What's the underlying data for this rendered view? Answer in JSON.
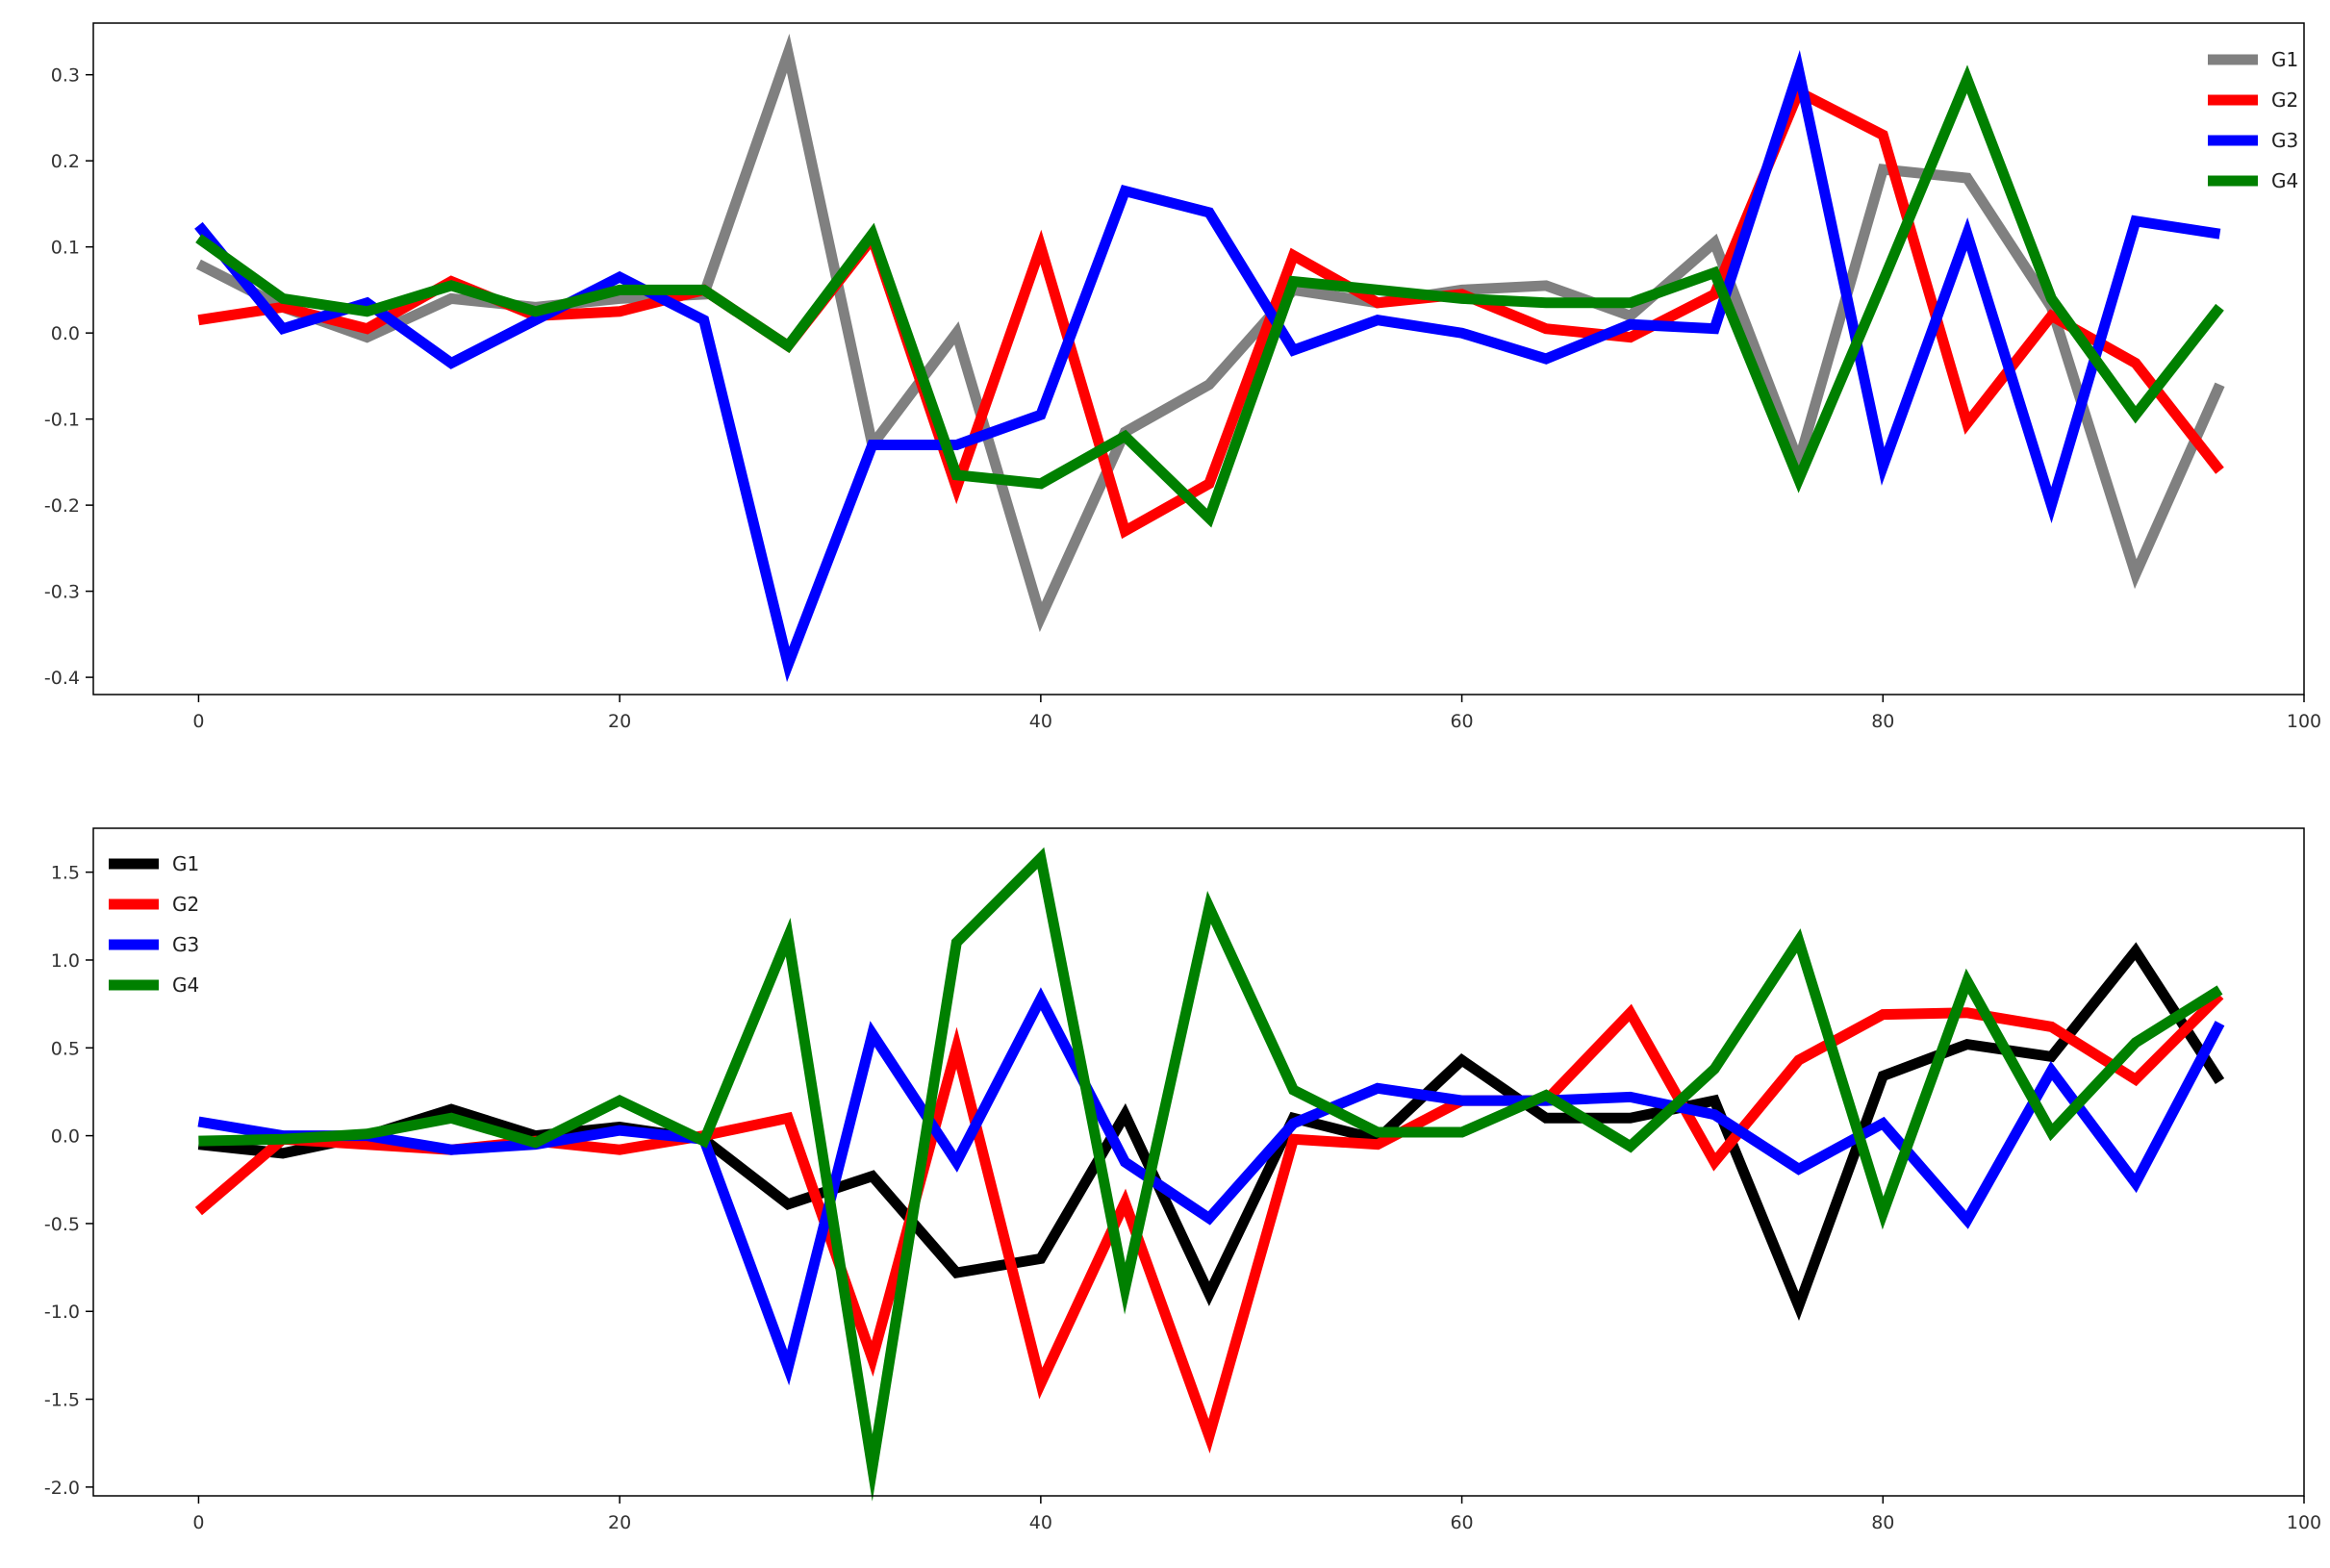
{
  "chart_data": [
    {
      "type": "line",
      "title": "",
      "xlabel": "",
      "ylabel": "",
      "xlim": [
        -5,
        100
      ],
      "ylim": [
        -0.42,
        0.36
      ],
      "xticks": [
        "0",
        "20",
        "40",
        "60",
        "80",
        "100"
      ],
      "yticks": [
        "0.3",
        "0.2",
        "0.1",
        "0.0",
        "-0.1",
        "-0.2",
        "-0.3",
        "-0.4"
      ],
      "grid": false,
      "legend_position": "top-right",
      "x": [
        0,
        4,
        8,
        12,
        16,
        20,
        24,
        28,
        32,
        36,
        40,
        44,
        48,
        52,
        56,
        60,
        64,
        68,
        72,
        76,
        80,
        84,
        88,
        92,
        96
      ],
      "series": [
        {
          "name": "G1",
          "color": "#808080",
          "values": [
            0.08,
            0.03,
            -0.005,
            0.04,
            0.03,
            0.04,
            0.045,
            0.325,
            -0.13,
            0.0,
            -0.33,
            -0.115,
            -0.06,
            0.05,
            0.035,
            0.05,
            0.055,
            0.02,
            0.105,
            -0.15,
            0.19,
            0.18,
            0.03,
            -0.28,
            -0.06
          ]
        },
        {
          "name": "G2",
          "color": "#ff0000",
          "values": [
            0.015,
            0.03,
            0.005,
            0.06,
            0.02,
            0.025,
            0.05,
            -0.015,
            0.11,
            -0.18,
            0.1,
            -0.23,
            -0.175,
            0.09,
            0.035,
            0.045,
            0.005,
            -0.005,
            0.045,
            0.28,
            0.23,
            -0.105,
            0.02,
            -0.035,
            -0.16
          ]
        },
        {
          "name": "G3",
          "color": "#0000ff",
          "values": [
            0.125,
            0.005,
            0.035,
            -0.035,
            0.015,
            0.065,
            0.015,
            -0.385,
            -0.13,
            -0.13,
            -0.095,
            0.165,
            0.14,
            -0.02,
            0.015,
            0.0,
            -0.03,
            0.01,
            0.005,
            0.305,
            -0.155,
            0.115,
            -0.2,
            0.13,
            0.115
          ]
        },
        {
          "name": "G4",
          "color": "#008000",
          "values": [
            0.11,
            0.04,
            0.025,
            0.055,
            0.025,
            0.05,
            0.05,
            -0.015,
            0.115,
            -0.165,
            -0.175,
            -0.12,
            -0.215,
            0.06,
            0.05,
            0.04,
            0.035,
            0.035,
            0.07,
            -0.17,
            0.06,
            0.295,
            0.04,
            -0.095,
            0.03
          ]
        }
      ]
    },
    {
      "type": "line",
      "title": "",
      "xlabel": "",
      "ylabel": "",
      "xlim": [
        -5,
        100
      ],
      "ylim": [
        -2.05,
        1.75
      ],
      "xticks": [
        "0",
        "20",
        "40",
        "60",
        "80",
        "100"
      ],
      "yticks": [
        "1.5",
        "1.0",
        "0.5",
        "0.0",
        "-0.5",
        "-1.0",
        "-1.5",
        "-2.0"
      ],
      "grid": false,
      "legend_position": "top-left",
      "x": [
        0,
        4,
        8,
        12,
        16,
        20,
        24,
        28,
        32,
        36,
        40,
        44,
        48,
        52,
        56,
        60,
        64,
        68,
        72,
        76,
        80,
        84,
        88,
        92,
        96
      ],
      "series": [
        {
          "name": "G1",
          "color": "#000000",
          "values": [
            -0.05,
            -0.1,
            0.0,
            0.15,
            0.0,
            0.05,
            -0.02,
            -0.39,
            -0.23,
            -0.78,
            -0.7,
            0.12,
            -0.9,
            0.1,
            -0.02,
            0.43,
            0.1,
            0.1,
            0.2,
            -0.97,
            0.34,
            0.52,
            0.45,
            1.05,
            0.31
          ]
        },
        {
          "name": "G2",
          "color": "#ff0000",
          "values": [
            -0.43,
            -0.02,
            -0.05,
            -0.08,
            -0.03,
            -0.08,
            0.0,
            0.1,
            -1.27,
            0.5,
            -1.41,
            -0.38,
            -1.71,
            -0.02,
            -0.05,
            0.2,
            0.2,
            0.7,
            -0.15,
            0.43,
            0.69,
            0.7,
            0.62,
            0.32,
            0.8
          ]
        },
        {
          "name": "G3",
          "color": "#0000ff",
          "values": [
            0.08,
            0.0,
            0.0,
            -0.08,
            -0.05,
            0.03,
            -0.02,
            -1.32,
            0.58,
            -0.15,
            0.78,
            -0.15,
            -0.47,
            0.07,
            0.27,
            0.2,
            0.2,
            0.22,
            0.12,
            -0.19,
            0.07,
            -0.48,
            0.37,
            -0.27,
            0.64
          ]
        },
        {
          "name": "G4",
          "color": "#008000",
          "values": [
            -0.03,
            -0.02,
            0.01,
            0.1,
            -0.04,
            0.2,
            -0.03,
            1.13,
            -1.89,
            1.1,
            1.58,
            -0.87,
            1.3,
            0.26,
            0.02,
            0.02,
            0.23,
            -0.06,
            0.38,
            1.11,
            -0.44,
            0.88,
            0.02,
            0.53,
            0.83
          ]
        }
      ]
    }
  ]
}
